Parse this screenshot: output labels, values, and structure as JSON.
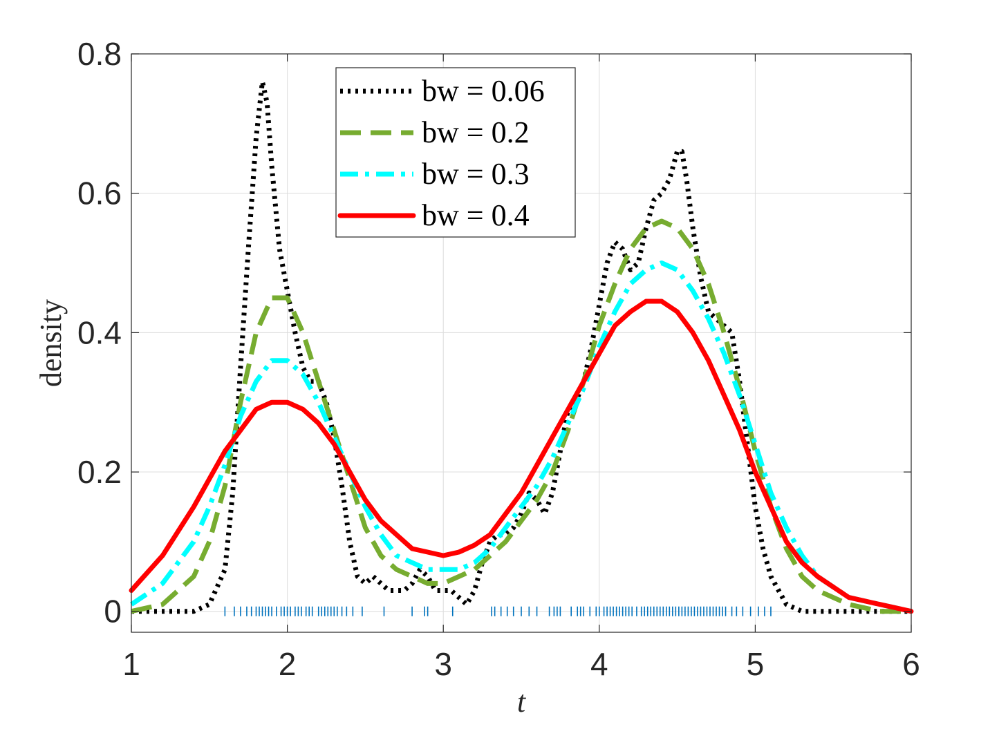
{
  "chart_data": {
    "type": "line",
    "xlabel": "t",
    "ylabel": "density",
    "xlim": [
      1,
      6
    ],
    "ylim": [
      -0.03,
      0.8
    ],
    "xticks": [
      1,
      2,
      3,
      4,
      5,
      6
    ],
    "yticks": [
      0,
      0.2,
      0.4,
      0.6,
      0.8
    ],
    "xtick_labels": [
      "1",
      "2",
      "3",
      "4",
      "5",
      "6"
    ],
    "ytick_labels": [
      "0",
      "0.2",
      "0.4",
      "0.6",
      "0.8"
    ],
    "grid": true,
    "legend_position": "top-center",
    "series": [
      {
        "name": "bw = 0.06",
        "style": "dotted",
        "color": "#000000",
        "x": [
          1.0,
          1.4,
          1.5,
          1.6,
          1.65,
          1.7,
          1.75,
          1.8,
          1.84,
          1.87,
          1.9,
          1.95,
          2.0,
          2.05,
          2.1,
          2.15,
          2.2,
          2.25,
          2.3,
          2.35,
          2.4,
          2.45,
          2.5,
          2.55,
          2.6,
          2.65,
          2.7,
          2.75,
          2.8,
          2.85,
          2.9,
          2.95,
          3.0,
          3.05,
          3.1,
          3.15,
          3.2,
          3.25,
          3.3,
          3.35,
          3.4,
          3.45,
          3.5,
          3.55,
          3.6,
          3.65,
          3.7,
          3.75,
          3.8,
          3.85,
          3.9,
          3.95,
          4.0,
          4.05,
          4.1,
          4.15,
          4.2,
          4.25,
          4.3,
          4.35,
          4.4,
          4.45,
          4.5,
          4.53,
          4.56,
          4.6,
          4.65,
          4.7,
          4.75,
          4.8,
          4.85,
          4.9,
          4.95,
          5.0,
          5.05,
          5.1,
          5.15,
          5.2,
          5.3,
          5.5,
          6.0
        ],
        "y": [
          0.0,
          0.0,
          0.01,
          0.06,
          0.17,
          0.35,
          0.52,
          0.68,
          0.76,
          0.73,
          0.64,
          0.52,
          0.46,
          0.4,
          0.35,
          0.33,
          0.33,
          0.3,
          0.25,
          0.18,
          0.1,
          0.05,
          0.04,
          0.05,
          0.04,
          0.03,
          0.03,
          0.03,
          0.04,
          0.06,
          0.05,
          0.03,
          0.03,
          0.03,
          0.02,
          0.01,
          0.03,
          0.07,
          0.1,
          0.11,
          0.11,
          0.12,
          0.14,
          0.17,
          0.16,
          0.14,
          0.17,
          0.23,
          0.29,
          0.3,
          0.33,
          0.38,
          0.44,
          0.5,
          0.53,
          0.52,
          0.49,
          0.5,
          0.55,
          0.59,
          0.6,
          0.62,
          0.66,
          0.66,
          0.62,
          0.55,
          0.48,
          0.43,
          0.42,
          0.41,
          0.4,
          0.33,
          0.24,
          0.15,
          0.09,
          0.05,
          0.03,
          0.01,
          0.0,
          0.0,
          0.0
        ]
      },
      {
        "name": "bw = 0.2",
        "style": "dashed",
        "color": "#77AC30",
        "x": [
          1.0,
          1.2,
          1.4,
          1.5,
          1.6,
          1.7,
          1.8,
          1.9,
          2.0,
          2.1,
          2.2,
          2.3,
          2.4,
          2.5,
          2.6,
          2.7,
          2.8,
          2.9,
          3.0,
          3.1,
          3.2,
          3.3,
          3.4,
          3.5,
          3.6,
          3.7,
          3.8,
          3.9,
          4.0,
          4.1,
          4.2,
          4.3,
          4.4,
          4.5,
          4.6,
          4.7,
          4.8,
          4.9,
          5.0,
          5.1,
          5.2,
          5.3,
          5.4,
          5.6,
          5.8,
          6.0
        ],
        "y": [
          0.0,
          0.01,
          0.05,
          0.1,
          0.18,
          0.3,
          0.4,
          0.45,
          0.45,
          0.4,
          0.33,
          0.26,
          0.19,
          0.12,
          0.08,
          0.06,
          0.05,
          0.04,
          0.04,
          0.05,
          0.06,
          0.08,
          0.1,
          0.13,
          0.16,
          0.2,
          0.26,
          0.33,
          0.41,
          0.47,
          0.52,
          0.55,
          0.56,
          0.55,
          0.52,
          0.47,
          0.4,
          0.32,
          0.23,
          0.15,
          0.09,
          0.05,
          0.03,
          0.01,
          0.0,
          0.0
        ]
      },
      {
        "name": "bw = 0.3",
        "style": "dashdot",
        "color": "#00FFFF",
        "x": [
          1.0,
          1.2,
          1.4,
          1.5,
          1.6,
          1.7,
          1.8,
          1.9,
          2.0,
          2.1,
          2.2,
          2.3,
          2.4,
          2.5,
          2.6,
          2.7,
          2.8,
          2.9,
          3.0,
          3.1,
          3.2,
          3.3,
          3.4,
          3.5,
          3.6,
          3.7,
          3.8,
          3.9,
          4.0,
          4.1,
          4.2,
          4.3,
          4.4,
          4.5,
          4.6,
          4.7,
          4.8,
          4.9,
          5.0,
          5.1,
          5.2,
          5.3,
          5.4,
          5.6,
          5.8,
          6.0
        ],
        "y": [
          0.01,
          0.04,
          0.1,
          0.15,
          0.21,
          0.28,
          0.33,
          0.36,
          0.36,
          0.34,
          0.3,
          0.25,
          0.2,
          0.15,
          0.11,
          0.08,
          0.07,
          0.06,
          0.06,
          0.06,
          0.07,
          0.09,
          0.12,
          0.15,
          0.18,
          0.22,
          0.27,
          0.32,
          0.38,
          0.43,
          0.47,
          0.49,
          0.5,
          0.49,
          0.46,
          0.42,
          0.37,
          0.31,
          0.24,
          0.17,
          0.12,
          0.08,
          0.05,
          0.02,
          0.01,
          0.0
        ]
      },
      {
        "name": "bw = 0.4",
        "style": "solid",
        "color": "#FF0000",
        "x": [
          1.0,
          1.2,
          1.4,
          1.5,
          1.6,
          1.7,
          1.8,
          1.9,
          2.0,
          2.1,
          2.2,
          2.3,
          2.4,
          2.5,
          2.6,
          2.7,
          2.8,
          2.9,
          3.0,
          3.1,
          3.2,
          3.3,
          3.4,
          3.5,
          3.6,
          3.7,
          3.8,
          3.9,
          4.0,
          4.1,
          4.2,
          4.3,
          4.4,
          4.5,
          4.6,
          4.7,
          4.8,
          4.9,
          5.0,
          5.1,
          5.2,
          5.3,
          5.4,
          5.6,
          5.8,
          6.0
        ],
        "y": [
          0.03,
          0.08,
          0.15,
          0.19,
          0.23,
          0.26,
          0.29,
          0.3,
          0.3,
          0.29,
          0.27,
          0.24,
          0.2,
          0.16,
          0.13,
          0.11,
          0.09,
          0.085,
          0.08,
          0.085,
          0.095,
          0.11,
          0.14,
          0.17,
          0.21,
          0.25,
          0.29,
          0.33,
          0.37,
          0.41,
          0.43,
          0.445,
          0.445,
          0.43,
          0.4,
          0.36,
          0.31,
          0.26,
          0.2,
          0.15,
          0.1,
          0.07,
          0.05,
          0.02,
          0.01,
          0.0
        ]
      }
    ],
    "rug": {
      "color": "#0072BD",
      "y": 0.0,
      "x": [
        1.6,
        1.66,
        1.7,
        1.74,
        1.77,
        1.8,
        1.82,
        1.84,
        1.86,
        1.88,
        1.9,
        1.93,
        1.96,
        1.98,
        2.0,
        2.02,
        2.05,
        2.07,
        2.09,
        2.12,
        2.14,
        2.16,
        2.2,
        2.22,
        2.24,
        2.26,
        2.28,
        2.3,
        2.32,
        2.35,
        2.38,
        2.42,
        2.48,
        2.62,
        2.8,
        2.88,
        2.9,
        3.06,
        3.31,
        3.33,
        3.37,
        3.41,
        3.45,
        3.5,
        3.55,
        3.6,
        3.68,
        3.71,
        3.73,
        3.75,
        3.82,
        3.86,
        3.88,
        3.9,
        3.94,
        3.98,
        4.0,
        4.03,
        4.05,
        4.07,
        4.09,
        4.11,
        4.13,
        4.15,
        4.17,
        4.19,
        4.21,
        4.24,
        4.27,
        4.29,
        4.31,
        4.33,
        4.35,
        4.37,
        4.39,
        4.41,
        4.43,
        4.45,
        4.47,
        4.49,
        4.51,
        4.53,
        4.55,
        4.57,
        4.59,
        4.61,
        4.63,
        4.65,
        4.67,
        4.69,
        4.71,
        4.73,
        4.75,
        4.77,
        4.79,
        4.81,
        4.85,
        4.88,
        4.92,
        4.97,
        5.02,
        5.06,
        5.1
      ]
    }
  }
}
